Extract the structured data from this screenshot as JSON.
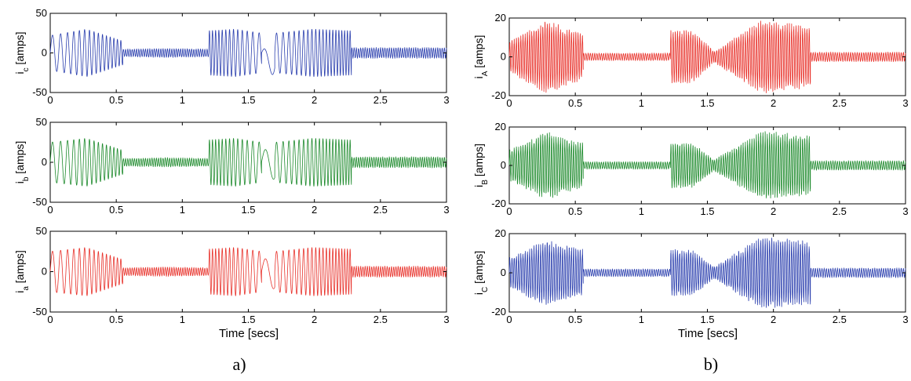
{
  "figure": {
    "captions": [
      "a)",
      "b)"
    ],
    "xlabel": "Time [secs]"
  },
  "chart_data": [
    {
      "type": "line",
      "panel": "a",
      "row": 1,
      "ylabel_main": "i",
      "ylabel_sub": "c",
      "ylabel_unit": " [amps]",
      "color": "#2b3fae",
      "xlim": [
        0,
        3
      ],
      "ylim": [
        -50,
        50
      ],
      "xticks": [
        "0",
        "0.5",
        "1",
        "1.5",
        "2",
        "2.5",
        "3"
      ],
      "yticks": [
        "-50",
        "0",
        "50"
      ],
      "series": [
        {
          "segments": [
            {
              "start": 0.0,
              "end": 0.55,
              "amp_start": 22,
              "amp_peak": 30,
              "amp_end": 15,
              "freq_start": 14,
              "freq_end": 40
            },
            {
              "start": 0.55,
              "end": 1.2,
              "amp_start": 5,
              "amp_peak": 6,
              "amp_end": 5,
              "freq_start": 60,
              "freq_end": 60
            },
            {
              "start": 1.2,
              "end": 1.6,
              "amp_start": 28,
              "amp_peak": 30,
              "amp_end": 25,
              "freq_start": 45,
              "freq_end": 18
            },
            {
              "start": 1.6,
              "end": 1.7,
              "amp_start": 20,
              "amp_peak": 20,
              "amp_end": 20,
              "freq_start": 8,
              "freq_end": 8,
              "offset": -20
            },
            {
              "start": 1.7,
              "end": 2.28,
              "amp_start": 25,
              "amp_peak": 30,
              "amp_end": 28,
              "freq_start": 18,
              "freq_end": 50
            },
            {
              "start": 2.28,
              "end": 3.0,
              "amp_start": 7,
              "amp_peak": 7,
              "amp_end": 7,
              "freq_start": 60,
              "freq_end": 60
            }
          ]
        }
      ]
    },
    {
      "type": "line",
      "panel": "a",
      "row": 2,
      "ylabel_main": "i",
      "ylabel_sub": "b",
      "ylabel_unit": " [amps]",
      "color": "#1d8a2c",
      "xlim": [
        0,
        3
      ],
      "ylim": [
        -50,
        50
      ],
      "xticks": [
        "0",
        "0.5",
        "1",
        "1.5",
        "2",
        "2.5",
        "3"
      ],
      "yticks": [
        "-50",
        "0",
        "50"
      ],
      "series": [
        {
          "segments": [
            {
              "start": 0.0,
              "end": 0.55,
              "amp_start": 25,
              "amp_peak": 30,
              "amp_end": 15,
              "freq_start": 14,
              "freq_end": 40
            },
            {
              "start": 0.55,
              "end": 1.2,
              "amp_start": 5,
              "amp_peak": 6,
              "amp_end": 5,
              "freq_start": 60,
              "freq_end": 60
            },
            {
              "start": 1.2,
              "end": 1.6,
              "amp_start": 28,
              "amp_peak": 30,
              "amp_end": 25,
              "freq_start": 45,
              "freq_end": 18
            },
            {
              "start": 1.6,
              "end": 1.7,
              "amp_start": 20,
              "amp_peak": 20,
              "amp_end": 20,
              "freq_start": 8,
              "freq_end": 8,
              "offset": -5
            },
            {
              "start": 1.7,
              "end": 2.28,
              "amp_start": 25,
              "amp_peak": 30,
              "amp_end": 28,
              "freq_start": 18,
              "freq_end": 50
            },
            {
              "start": 2.28,
              "end": 3.0,
              "amp_start": 7,
              "amp_peak": 7,
              "amp_end": 7,
              "freq_start": 60,
              "freq_end": 60
            }
          ]
        }
      ]
    },
    {
      "type": "line",
      "panel": "a",
      "row": 3,
      "ylabel_main": "i",
      "ylabel_sub": "a",
      "ylabel_unit": " [amps]",
      "color": "#e8312a",
      "xlim": [
        0,
        3
      ],
      "ylim": [
        -50,
        50
      ],
      "xticks": [
        "0",
        "0.5",
        "1",
        "1.5",
        "2",
        "2.5",
        "3"
      ],
      "yticks": [
        "-50",
        "0",
        "50"
      ],
      "series": [
        {
          "segments": [
            {
              "start": 0.0,
              "end": 0.55,
              "amp_start": 25,
              "amp_peak": 30,
              "amp_end": 15,
              "freq_start": 14,
              "freq_end": 40
            },
            {
              "start": 0.55,
              "end": 1.2,
              "amp_start": 5,
              "amp_peak": 6,
              "amp_end": 5,
              "freq_start": 60,
              "freq_end": 60
            },
            {
              "start": 1.2,
              "end": 1.6,
              "amp_start": 28,
              "amp_peak": 30,
              "amp_end": 25,
              "freq_start": 45,
              "freq_end": 18
            },
            {
              "start": 1.6,
              "end": 1.7,
              "amp_start": 20,
              "amp_peak": 20,
              "amp_end": 20,
              "freq_start": 8,
              "freq_end": 8,
              "offset": -5
            },
            {
              "start": 1.7,
              "end": 2.28,
              "amp_start": 25,
              "amp_peak": 30,
              "amp_end": 28,
              "freq_start": 18,
              "freq_end": 50
            },
            {
              "start": 2.28,
              "end": 3.0,
              "amp_start": 7,
              "amp_peak": 7,
              "amp_end": 7,
              "freq_start": 60,
              "freq_end": 60
            }
          ]
        }
      ]
    },
    {
      "type": "line",
      "panel": "b",
      "row": 1,
      "ylabel_main": "i",
      "ylabel_sub": "A",
      "ylabel_unit": " [amps]",
      "color": "#e8312a",
      "xlim": [
        0,
        3
      ],
      "ylim": [
        -20,
        20
      ],
      "xticks": [
        "0",
        "0.5",
        "1",
        "1.5",
        "2",
        "2.5",
        "3"
      ],
      "yticks": [
        "-20",
        "0",
        "20"
      ],
      "series": [
        {
          "segments": [
            {
              "start": 0.0,
              "end": 0.56,
              "amp_start": 8,
              "amp_peak": 19,
              "amp_end": 12,
              "freq_start": 60,
              "freq_end": 60
            },
            {
              "start": 0.56,
              "end": 1.22,
              "amp_start": 2,
              "amp_peak": 2,
              "amp_end": 2,
              "freq_start": 60,
              "freq_end": 60
            },
            {
              "start": 1.22,
              "end": 1.55,
              "amp_start": 14,
              "amp_peak": 14,
              "amp_end": 3,
              "freq_start": 60,
              "freq_end": 60
            },
            {
              "start": 1.55,
              "end": 2.28,
              "amp_start": 3,
              "amp_peak": 19,
              "amp_end": 16,
              "freq_start": 60,
              "freq_end": 60
            },
            {
              "start": 2.28,
              "end": 3.0,
              "amp_start": 2.5,
              "amp_peak": 2.5,
              "amp_end": 2.5,
              "freq_start": 60,
              "freq_end": 60
            }
          ]
        }
      ]
    },
    {
      "type": "line",
      "panel": "b",
      "row": 2,
      "ylabel_main": "i",
      "ylabel_sub": "B",
      "ylabel_unit": " [amps]",
      "color": "#1d8a2c",
      "xlim": [
        0,
        3
      ],
      "ylim": [
        -20,
        20
      ],
      "xticks": [
        "0",
        "0.5",
        "1",
        "1.5",
        "2",
        "2.5",
        "3"
      ],
      "yticks": [
        "-20",
        "0",
        "20"
      ],
      "series": [
        {
          "segments": [
            {
              "start": 0.0,
              "end": 0.56,
              "amp_start": 8,
              "amp_peak": 18,
              "amp_end": 12,
              "freq_start": 60,
              "freq_end": 60
            },
            {
              "start": 0.56,
              "end": 1.22,
              "amp_start": 2,
              "amp_peak": 2,
              "amp_end": 2,
              "freq_start": 60,
              "freq_end": 60
            },
            {
              "start": 1.22,
              "end": 1.55,
              "amp_start": 12,
              "amp_peak": 12,
              "amp_end": 3,
              "freq_start": 60,
              "freq_end": 60
            },
            {
              "start": 1.55,
              "end": 2.28,
              "amp_start": 3,
              "amp_peak": 18,
              "amp_end": 16,
              "freq_start": 60,
              "freq_end": 60
            },
            {
              "start": 2.28,
              "end": 3.0,
              "amp_start": 2.5,
              "amp_peak": 2.5,
              "amp_end": 2.5,
              "freq_start": 60,
              "freq_end": 60
            }
          ]
        }
      ]
    },
    {
      "type": "line",
      "panel": "b",
      "row": 3,
      "ylabel_main": "i",
      "ylabel_sub": "C",
      "ylabel_unit": " [amps]",
      "color": "#2b3fae",
      "xlim": [
        0,
        3
      ],
      "ylim": [
        -20,
        20
      ],
      "xticks": [
        "0",
        "0.5",
        "1",
        "1.5",
        "2",
        "2.5",
        "3"
      ],
      "yticks": [
        "-20",
        "0",
        "20"
      ],
      "series": [
        {
          "segments": [
            {
              "start": 0.0,
              "end": 0.56,
              "amp_start": 8,
              "amp_peak": 17,
              "amp_end": 12,
              "freq_start": 60,
              "freq_end": 60
            },
            {
              "start": 0.56,
              "end": 1.22,
              "amp_start": 2,
              "amp_peak": 2,
              "amp_end": 2,
              "freq_start": 60,
              "freq_end": 60
            },
            {
              "start": 1.22,
              "end": 1.55,
              "amp_start": 12,
              "amp_peak": 12,
              "amp_end": 3,
              "freq_start": 60,
              "freq_end": 60
            },
            {
              "start": 1.55,
              "end": 2.28,
              "amp_start": 3,
              "amp_peak": 19,
              "amp_end": 16,
              "freq_start": 60,
              "freq_end": 60
            },
            {
              "start": 2.28,
              "end": 3.0,
              "amp_start": 2.5,
              "amp_peak": 2.5,
              "amp_end": 2.5,
              "freq_start": 60,
              "freq_end": 60
            }
          ]
        }
      ]
    }
  ]
}
